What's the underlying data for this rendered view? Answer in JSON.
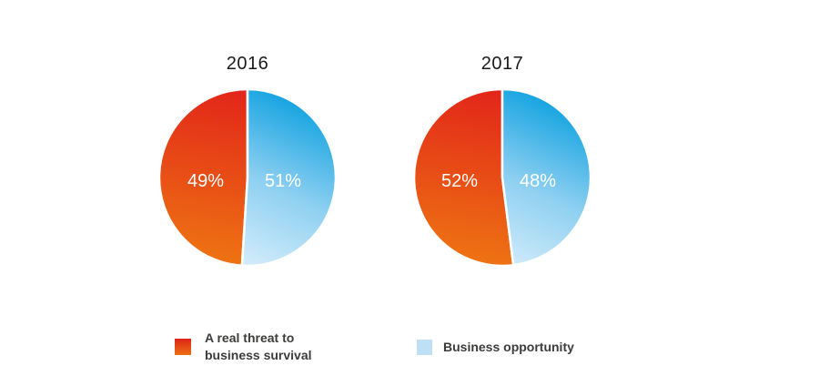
{
  "page": {
    "background": "#ffffff"
  },
  "colors": {
    "threat_gradient_top": "#e2231a",
    "threat_gradient_bottom": "#ee7512",
    "opportunity_gradient_start": "#11a2e0",
    "opportunity_gradient_mid": "#8fd0f1",
    "opportunity_gradient_end": "#dbeffb",
    "legend_threat_top": "#dd2418",
    "legend_threat_bottom": "#ee7012",
    "legend_opportunity": "#bfdff4",
    "title_text": "#1a1a1a",
    "legend_text": "#3c3c3b",
    "slice_label_text": "#ffffff"
  },
  "chart_data": [
    {
      "type": "pie",
      "title": "2016",
      "slices": [
        {
          "label": "A real threat to business survival",
          "value": 49,
          "display": "49%"
        },
        {
          "label": "Business opportunity",
          "value": 51,
          "display": "51%"
        }
      ]
    },
    {
      "type": "pie",
      "title": "2017",
      "slices": [
        {
          "label": "A real threat to business survival",
          "value": 52,
          "display": "52%"
        },
        {
          "label": "Business opportunity",
          "value": 48,
          "display": "48%"
        }
      ]
    }
  ],
  "legend": {
    "items": [
      {
        "label": "A real threat to business survival",
        "line1": "A real threat to",
        "line2": "business survival"
      },
      {
        "label": "Business opportunity"
      }
    ]
  }
}
